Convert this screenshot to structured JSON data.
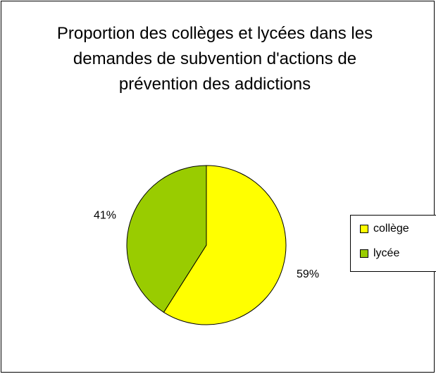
{
  "chart_data": {
    "type": "pie",
    "title": "Proportion des collèges et lycées dans les demandes de subvention d'actions de prévention des addictions",
    "categories": [
      "collège",
      "lycée"
    ],
    "values": [
      59,
      41
    ],
    "value_labels": [
      "59%",
      "41%"
    ],
    "colors": [
      "#ffff00",
      "#99cc00"
    ],
    "legend": "right"
  }
}
